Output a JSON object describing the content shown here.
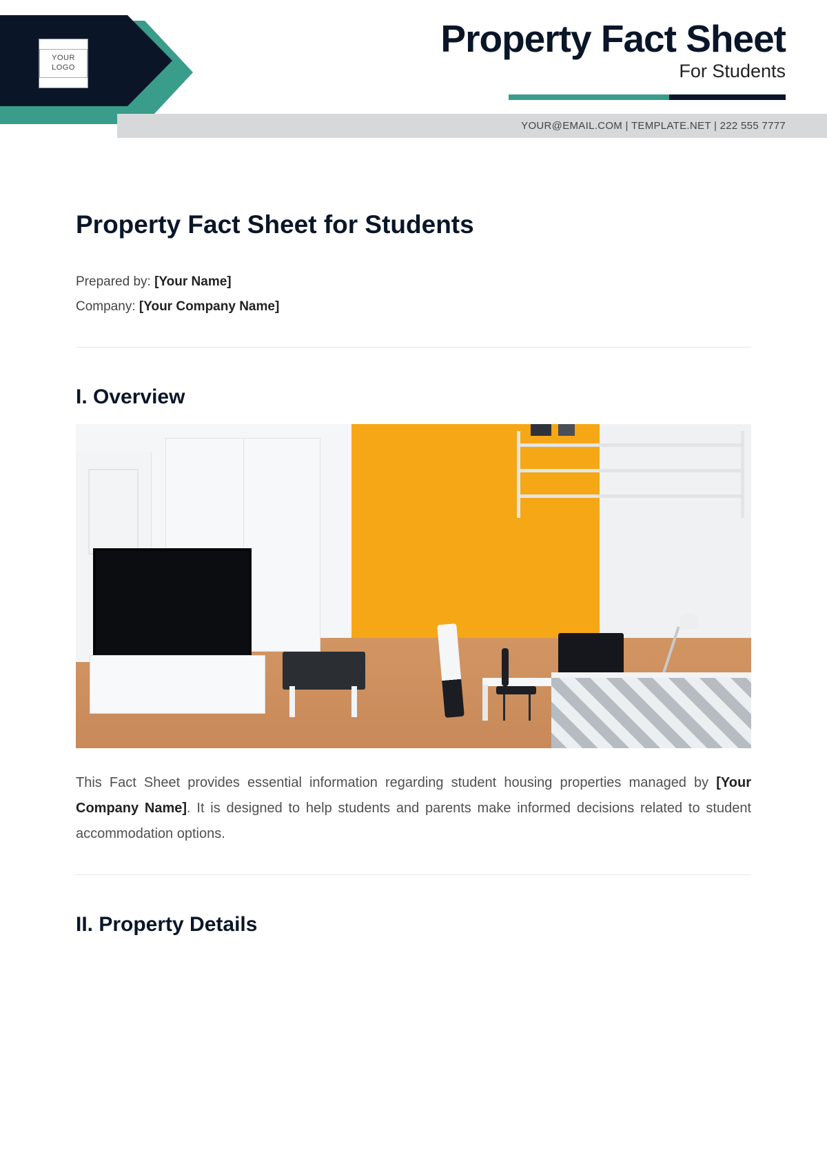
{
  "colors": {
    "teal": "#3a9c8a",
    "navy": "#0a1628",
    "contact_bg": "#d6d8da",
    "divider": "#e6e6e6",
    "body_text": "#4d4f52"
  },
  "header": {
    "logo_text": "YOUR LOGO",
    "title": "Property Fact Sheet",
    "subtitle": "For Students",
    "contact": "YOUR@EMAIL.COM | TEMPLATE.NET | 222 555 7777"
  },
  "document": {
    "title": "Property Fact Sheet for Students",
    "meta": {
      "prepared_by_label": "Prepared by: ",
      "prepared_by_value": "[Your Name]",
      "company_label": "Company: ",
      "company_value": "[Your Company Name]"
    },
    "sections": {
      "overview": {
        "heading": "I. Overview",
        "paragraph_pre": "This Fact Sheet provides essential information regarding student housing properties managed by ",
        "paragraph_ph": "[Your Company Name]",
        "paragraph_post": ". It is designed to help students and parents make informed decisions related to student accommodation options."
      },
      "details": {
        "heading": "II. Property Details"
      }
    }
  },
  "illustration": {
    "accent_wall": "#f6a716",
    "floor": "#cf8f5d",
    "tv": "#0b0d11",
    "bed_pattern_a": "#b6bcc1",
    "bed_pattern_b": "#eceff1"
  }
}
